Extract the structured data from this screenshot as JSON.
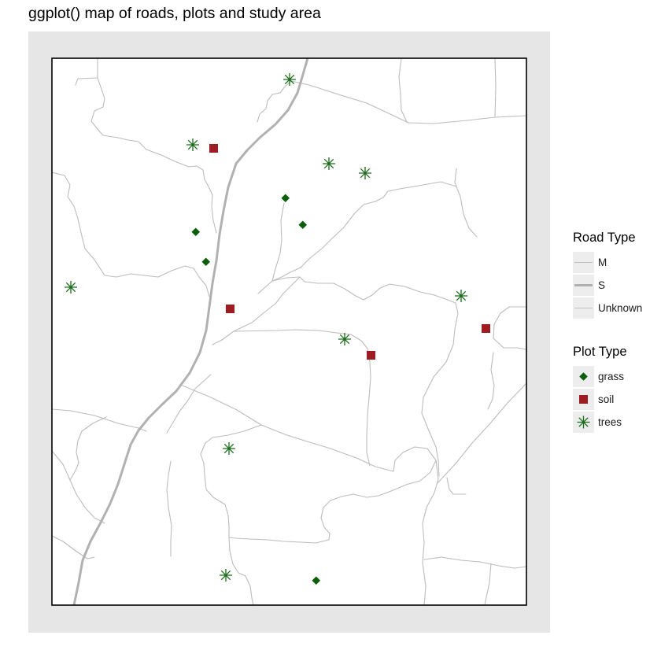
{
  "title": "ggplot() map of roads, plots and study area",
  "legend": {
    "road_type": {
      "title": "Road Type",
      "items": [
        {
          "label": "M",
          "color": "#bdbdbd",
          "line": "thin"
        },
        {
          "label": "S",
          "color": "#b0b0b0",
          "line": "thick"
        },
        {
          "label": "Unknown",
          "color": "#c4c4c4",
          "line": "thin"
        }
      ]
    },
    "plot_type": {
      "title": "Plot Type",
      "items": [
        {
          "label": "grass",
          "color": "#0b5f0b",
          "shape": "diamond-icon"
        },
        {
          "label": "soil",
          "color": "#9e1b22",
          "shape": "square-icon"
        },
        {
          "label": "trees",
          "color": "#1a6b1a",
          "shape": "asterisk-icon"
        }
      ]
    }
  }
}
